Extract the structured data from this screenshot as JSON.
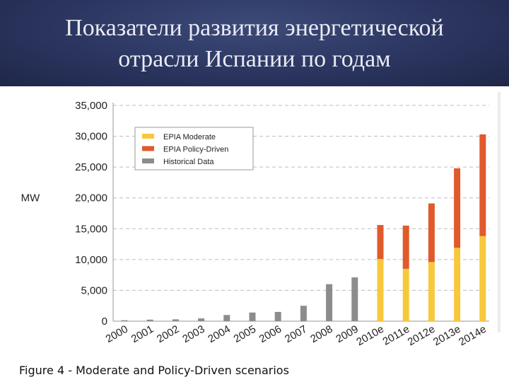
{
  "slide": {
    "title_line1": "Показатели развития энергетической",
    "title_line2": "отрасли Испании по годам"
  },
  "caption": "Figure 4 - Moderate and Policy-Driven scenarios",
  "chart_data": {
    "type": "bar",
    "stacked": true,
    "ylabel": "MW",
    "ylim": [
      0,
      35000
    ],
    "yticks": [
      0,
      5000,
      10000,
      15000,
      20000,
      25000,
      30000,
      35000
    ],
    "ytick_labels": [
      "0",
      "5,000",
      "10,000",
      "15,000",
      "20,000",
      "25,000",
      "30,000",
      "35,000"
    ],
    "grid": true,
    "legend_position": "top-left",
    "categories": [
      "2000",
      "2001",
      "2002",
      "2003",
      "2004",
      "2005",
      "2006",
      "2007",
      "2008",
      "2009",
      "2010e",
      "2011e",
      "2012e",
      "2013e",
      "2014e"
    ],
    "series": [
      {
        "name": "EPIA Moderate",
        "color": "#f7c83c",
        "values": [
          null,
          null,
          null,
          null,
          null,
          null,
          null,
          null,
          null,
          null,
          10100,
          8500,
          9600,
          11900,
          13800
        ]
      },
      {
        "name": "EPIA Policy-Driven",
        "color": "#e05a2b",
        "values": [
          null,
          null,
          null,
          null,
          null,
          null,
          null,
          null,
          null,
          null,
          5500,
          7000,
          9500,
          12900,
          16500
        ]
      },
      {
        "name": "Historical Data",
        "color": "#8c8c8c",
        "values": [
          150,
          250,
          300,
          450,
          1000,
          1400,
          1500,
          2500,
          6000,
          7100,
          null,
          null,
          null,
          null,
          null
        ]
      }
    ]
  }
}
